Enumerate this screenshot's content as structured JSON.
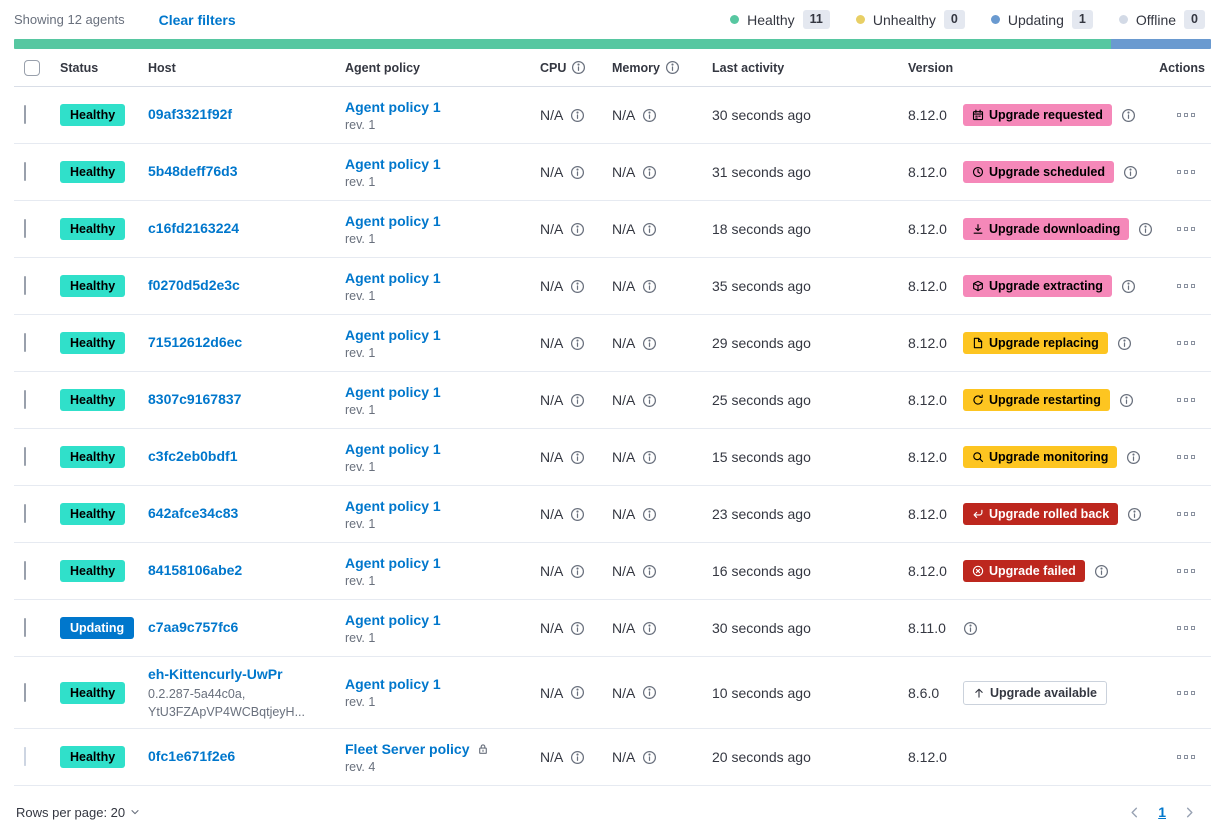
{
  "toolbar": {
    "showing": "Showing 12 agents",
    "clear_filters": "Clear filters",
    "legend": [
      {
        "label": "Healthy",
        "count": "11",
        "color_key": "legend_healthy"
      },
      {
        "label": "Unhealthy",
        "count": "0",
        "color_key": "legend_unhealthy"
      },
      {
        "label": "Updating",
        "count": "1",
        "color_key": "legend_updating"
      },
      {
        "label": "Offline",
        "count": "0",
        "color_key": "legend_offline"
      }
    ]
  },
  "progress_bar": {
    "segments": [
      {
        "color_key": "progress_green",
        "fraction": 0.9167
      },
      {
        "color_key": "progress_blue",
        "fraction": 0.0833
      }
    ]
  },
  "table": {
    "headers": [
      {
        "label": "Status"
      },
      {
        "label": "Host"
      },
      {
        "label": "Agent policy"
      },
      {
        "label": "CPU",
        "info": true
      },
      {
        "label": "Memory",
        "info": true
      },
      {
        "label": "Last activity"
      },
      {
        "label": "Version"
      },
      {
        "label": "Actions",
        "align": "right"
      }
    ],
    "rows": [
      {
        "status": "Healthy",
        "host": "09af3321f92f",
        "host_sub": [],
        "policy": "Agent policy 1",
        "rev": "rev. 1",
        "policy_locked": false,
        "cpu": "N/A",
        "memory": "N/A",
        "last_activity": "30 seconds ago",
        "version": "8.12.0",
        "upgrade": {
          "label": "Upgrade requested",
          "icon": "calendar-icon",
          "style": "pink"
        },
        "version_info": true,
        "checkbox_disabled": false
      },
      {
        "status": "Healthy",
        "host": "5b48deff76d3",
        "host_sub": [],
        "policy": "Agent policy 1",
        "rev": "rev. 1",
        "policy_locked": false,
        "cpu": "N/A",
        "memory": "N/A",
        "last_activity": "31 seconds ago",
        "version": "8.12.0",
        "upgrade": {
          "label": "Upgrade scheduled",
          "icon": "clock-icon",
          "style": "pink"
        },
        "version_info": true,
        "checkbox_disabled": false
      },
      {
        "status": "Healthy",
        "host": "c16fd2163224",
        "host_sub": [],
        "policy": "Agent policy 1",
        "rev": "rev. 1",
        "policy_locked": false,
        "cpu": "N/A",
        "memory": "N/A",
        "last_activity": "18 seconds ago",
        "version": "8.12.0",
        "upgrade": {
          "label": "Upgrade downloading",
          "icon": "download-icon",
          "style": "pink"
        },
        "version_info": true,
        "checkbox_disabled": false
      },
      {
        "status": "Healthy",
        "host": "f0270d5d2e3c",
        "host_sub": [],
        "policy": "Agent policy 1",
        "rev": "rev. 1",
        "policy_locked": false,
        "cpu": "N/A",
        "memory": "N/A",
        "last_activity": "35 seconds ago",
        "version": "8.12.0",
        "upgrade": {
          "label": "Upgrade extracting",
          "icon": "package-icon",
          "style": "pink"
        },
        "version_info": true,
        "checkbox_disabled": false
      },
      {
        "status": "Healthy",
        "host": "71512612d6ec",
        "host_sub": [],
        "policy": "Agent policy 1",
        "rev": "rev. 1",
        "policy_locked": false,
        "cpu": "N/A",
        "memory": "N/A",
        "last_activity": "29 seconds ago",
        "version": "8.12.0",
        "upgrade": {
          "label": "Upgrade replacing",
          "icon": "document-icon",
          "style": "yellow"
        },
        "version_info": true,
        "checkbox_disabled": false
      },
      {
        "status": "Healthy",
        "host": "8307c9167837",
        "host_sub": [],
        "policy": "Agent policy 1",
        "rev": "rev. 1",
        "policy_locked": false,
        "cpu": "N/A",
        "memory": "N/A",
        "last_activity": "25 seconds ago",
        "version": "8.12.0",
        "upgrade": {
          "label": "Upgrade restarting",
          "icon": "refresh-icon",
          "style": "yellow"
        },
        "version_info": true,
        "checkbox_disabled": false
      },
      {
        "status": "Healthy",
        "host": "c3fc2eb0bdf1",
        "host_sub": [],
        "policy": "Agent policy 1",
        "rev": "rev. 1",
        "policy_locked": false,
        "cpu": "N/A",
        "memory": "N/A",
        "last_activity": "15 seconds ago",
        "version": "8.12.0",
        "upgrade": {
          "label": "Upgrade monitoring",
          "icon": "inspect-icon",
          "style": "yellow"
        },
        "version_info": true,
        "checkbox_disabled": false
      },
      {
        "status": "Healthy",
        "host": "642afce34c83",
        "host_sub": [],
        "policy": "Agent policy 1",
        "rev": "rev. 1",
        "policy_locked": false,
        "cpu": "N/A",
        "memory": "N/A",
        "last_activity": "23 seconds ago",
        "version": "8.12.0",
        "upgrade": {
          "label": "Upgrade rolled back",
          "icon": "return-icon",
          "style": "red"
        },
        "version_info": true,
        "checkbox_disabled": false
      },
      {
        "status": "Healthy",
        "host": "84158106abe2",
        "host_sub": [],
        "policy": "Agent policy 1",
        "rev": "rev. 1",
        "policy_locked": false,
        "cpu": "N/A",
        "memory": "N/A",
        "last_activity": "16 seconds ago",
        "version": "8.12.0",
        "upgrade": {
          "label": "Upgrade failed",
          "icon": "error-icon",
          "style": "red"
        },
        "version_info": true,
        "checkbox_disabled": false
      },
      {
        "status": "Updating",
        "host": "c7aa9c757fc6",
        "host_sub": [],
        "policy": "Agent policy 1",
        "rev": "rev. 1",
        "policy_locked": false,
        "cpu": "N/A",
        "memory": "N/A",
        "last_activity": "30 seconds ago",
        "version": "8.11.0",
        "upgrade": null,
        "version_info": true,
        "checkbox_disabled": false
      },
      {
        "status": "Healthy",
        "host": "eh-Kittencurly-UwPr",
        "host_sub": [
          "0.2.287-5a44c0a,",
          "YtU3FZApVP4WCBqtjeyH..."
        ],
        "policy": "Agent policy 1",
        "rev": "rev. 1",
        "policy_locked": false,
        "cpu": "N/A",
        "memory": "N/A",
        "last_activity": "10 seconds ago",
        "version": "8.6.0",
        "upgrade": {
          "label": "Upgrade available",
          "icon": "up-arrow-icon",
          "style": "hollow"
        },
        "version_info": false,
        "checkbox_disabled": false
      },
      {
        "status": "Healthy",
        "host": "0fc1e671f2e6",
        "host_sub": [],
        "policy": "Fleet Server policy",
        "rev": "rev. 4",
        "policy_locked": true,
        "cpu": "N/A",
        "memory": "N/A",
        "last_activity": "20 seconds ago",
        "version": "8.12.0",
        "upgrade": null,
        "version_info": false,
        "checkbox_disabled": true
      }
    ]
  },
  "footer": {
    "rows_per_page": "Rows per page: 20",
    "page": "1"
  },
  "colors": {
    "link": "#0077cc",
    "healthy_badge": "#30e0ca",
    "updating_badge": "#0077cc",
    "pink_badge": "#f588b9",
    "yellow_badge": "#fdc521",
    "red_badge": "#bd271e",
    "hollow_badge_border": "#cbd2dc",
    "progress_green": "#57c7a1",
    "progress_blue": "#6a9ad0",
    "legend_healthy": "#57c7a1",
    "legend_unhealthy": "#e8cf65",
    "legend_updating": "#6a9ad0",
    "legend_offline": "#d3dae6"
  }
}
